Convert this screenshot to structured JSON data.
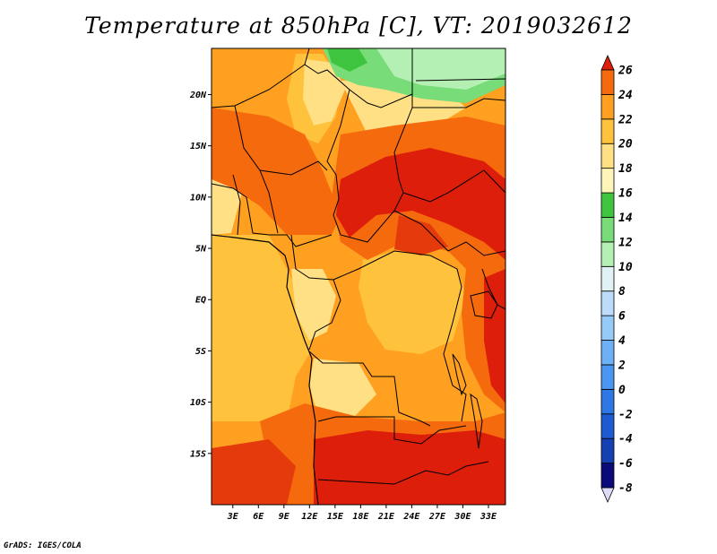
{
  "title": "Temperature at 850hPa [C], VT: 2019032612",
  "credit": "GrADS: IGES/COLA",
  "map": {
    "lat_ticks": [
      {
        "value": 20,
        "label": "20N"
      },
      {
        "value": 15,
        "label": "15N"
      },
      {
        "value": 10,
        "label": "10N"
      },
      {
        "value": 5,
        "label": "5N"
      },
      {
        "value": 0,
        "label": "EQ"
      },
      {
        "value": -5,
        "label": "5S"
      },
      {
        "value": -10,
        "label": "10S"
      },
      {
        "value": -15,
        "label": "15S"
      }
    ],
    "lon_ticks": [
      {
        "value": 3,
        "label": "3E"
      },
      {
        "value": 6,
        "label": "6E"
      },
      {
        "value": 9,
        "label": "9E"
      },
      {
        "value": 12,
        "label": "12E"
      },
      {
        "value": 15,
        "label": "15E"
      },
      {
        "value": 18,
        "label": "18E"
      },
      {
        "value": 21,
        "label": "21E"
      },
      {
        "value": 24,
        "label": "24E"
      },
      {
        "value": 27,
        "label": "27E"
      },
      {
        "value": 30,
        "label": "30E"
      },
      {
        "value": 33,
        "label": "33E"
      }
    ],
    "lon_range": [
      0.5,
      35
    ],
    "lat_range": [
      -20,
      24.5
    ]
  },
  "colorbar": {
    "levels": [
      {
        "value": "-8",
        "color": "#0a0a7a"
      },
      {
        "value": "-6",
        "color": "#1440b4"
      },
      {
        "value": "-4",
        "color": "#1e5ad2"
      },
      {
        "value": "-2",
        "color": "#2e78e6"
      },
      {
        "value": "0",
        "color": "#4a96f0"
      },
      {
        "value": "2",
        "color": "#6eb0f6"
      },
      {
        "value": "4",
        "color": "#96caf8"
      },
      {
        "value": "6",
        "color": "#bcdcfa"
      },
      {
        "value": "8",
        "color": "#e0f2f4"
      },
      {
        "value": "10",
        "color": "#b4f0b4"
      },
      {
        "value": "12",
        "color": "#78dc78"
      },
      {
        "value": "14",
        "color": "#3ec43e"
      },
      {
        "value": "16",
        "color": "#fff5b8"
      },
      {
        "value": "18",
        "color": "#ffe084"
      },
      {
        "value": "20",
        "color": "#ffc23c"
      },
      {
        "value": "22",
        "color": "#ffa020"
      },
      {
        "value": "24",
        "color": "#f66a0e"
      },
      {
        "value": "26",
        "color": "#e43a0c"
      }
    ],
    "under_color": "#dcdcfa",
    "over_color": "#dc1e0a"
  }
}
